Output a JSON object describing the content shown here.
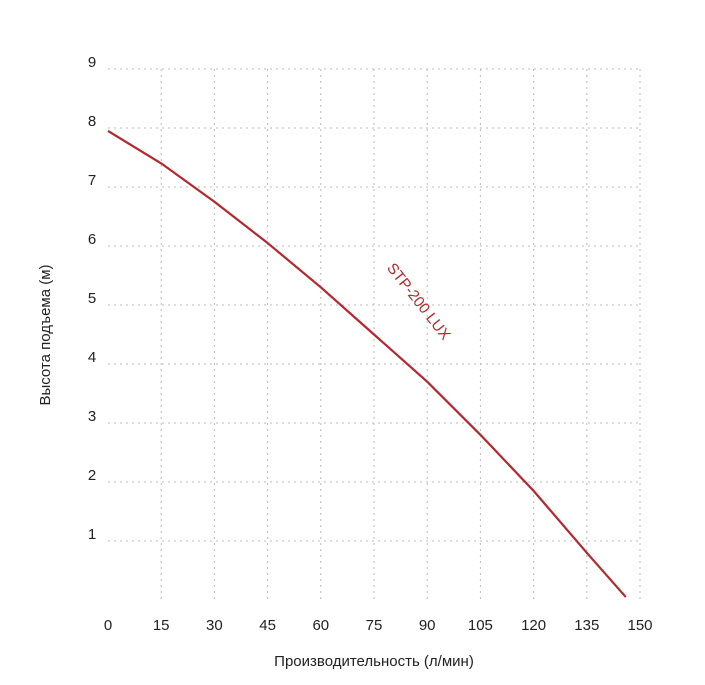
{
  "chart_data": {
    "type": "line",
    "x_label": "Производительность (л/мин)",
    "y_label": "Высота подъема (м)",
    "x": [
      0,
      15,
      30,
      45,
      60,
      75,
      90,
      105,
      120,
      135,
      146
    ],
    "series": [
      {
        "name": "STP-200 LUX",
        "color": "#b5272d",
        "values": [
          7.95,
          7.4,
          6.75,
          6.05,
          5.3,
          4.5,
          3.7,
          2.8,
          1.85,
          0.8,
          0.05
        ]
      }
    ],
    "xlim": [
      0,
      150
    ],
    "ylim": [
      0,
      9
    ],
    "xticks": [
      0,
      15,
      30,
      45,
      60,
      75,
      90,
      105,
      120,
      135,
      150
    ],
    "yticks": [
      1,
      2,
      3,
      4,
      5,
      6,
      7,
      8,
      9
    ],
    "grid": true
  }
}
